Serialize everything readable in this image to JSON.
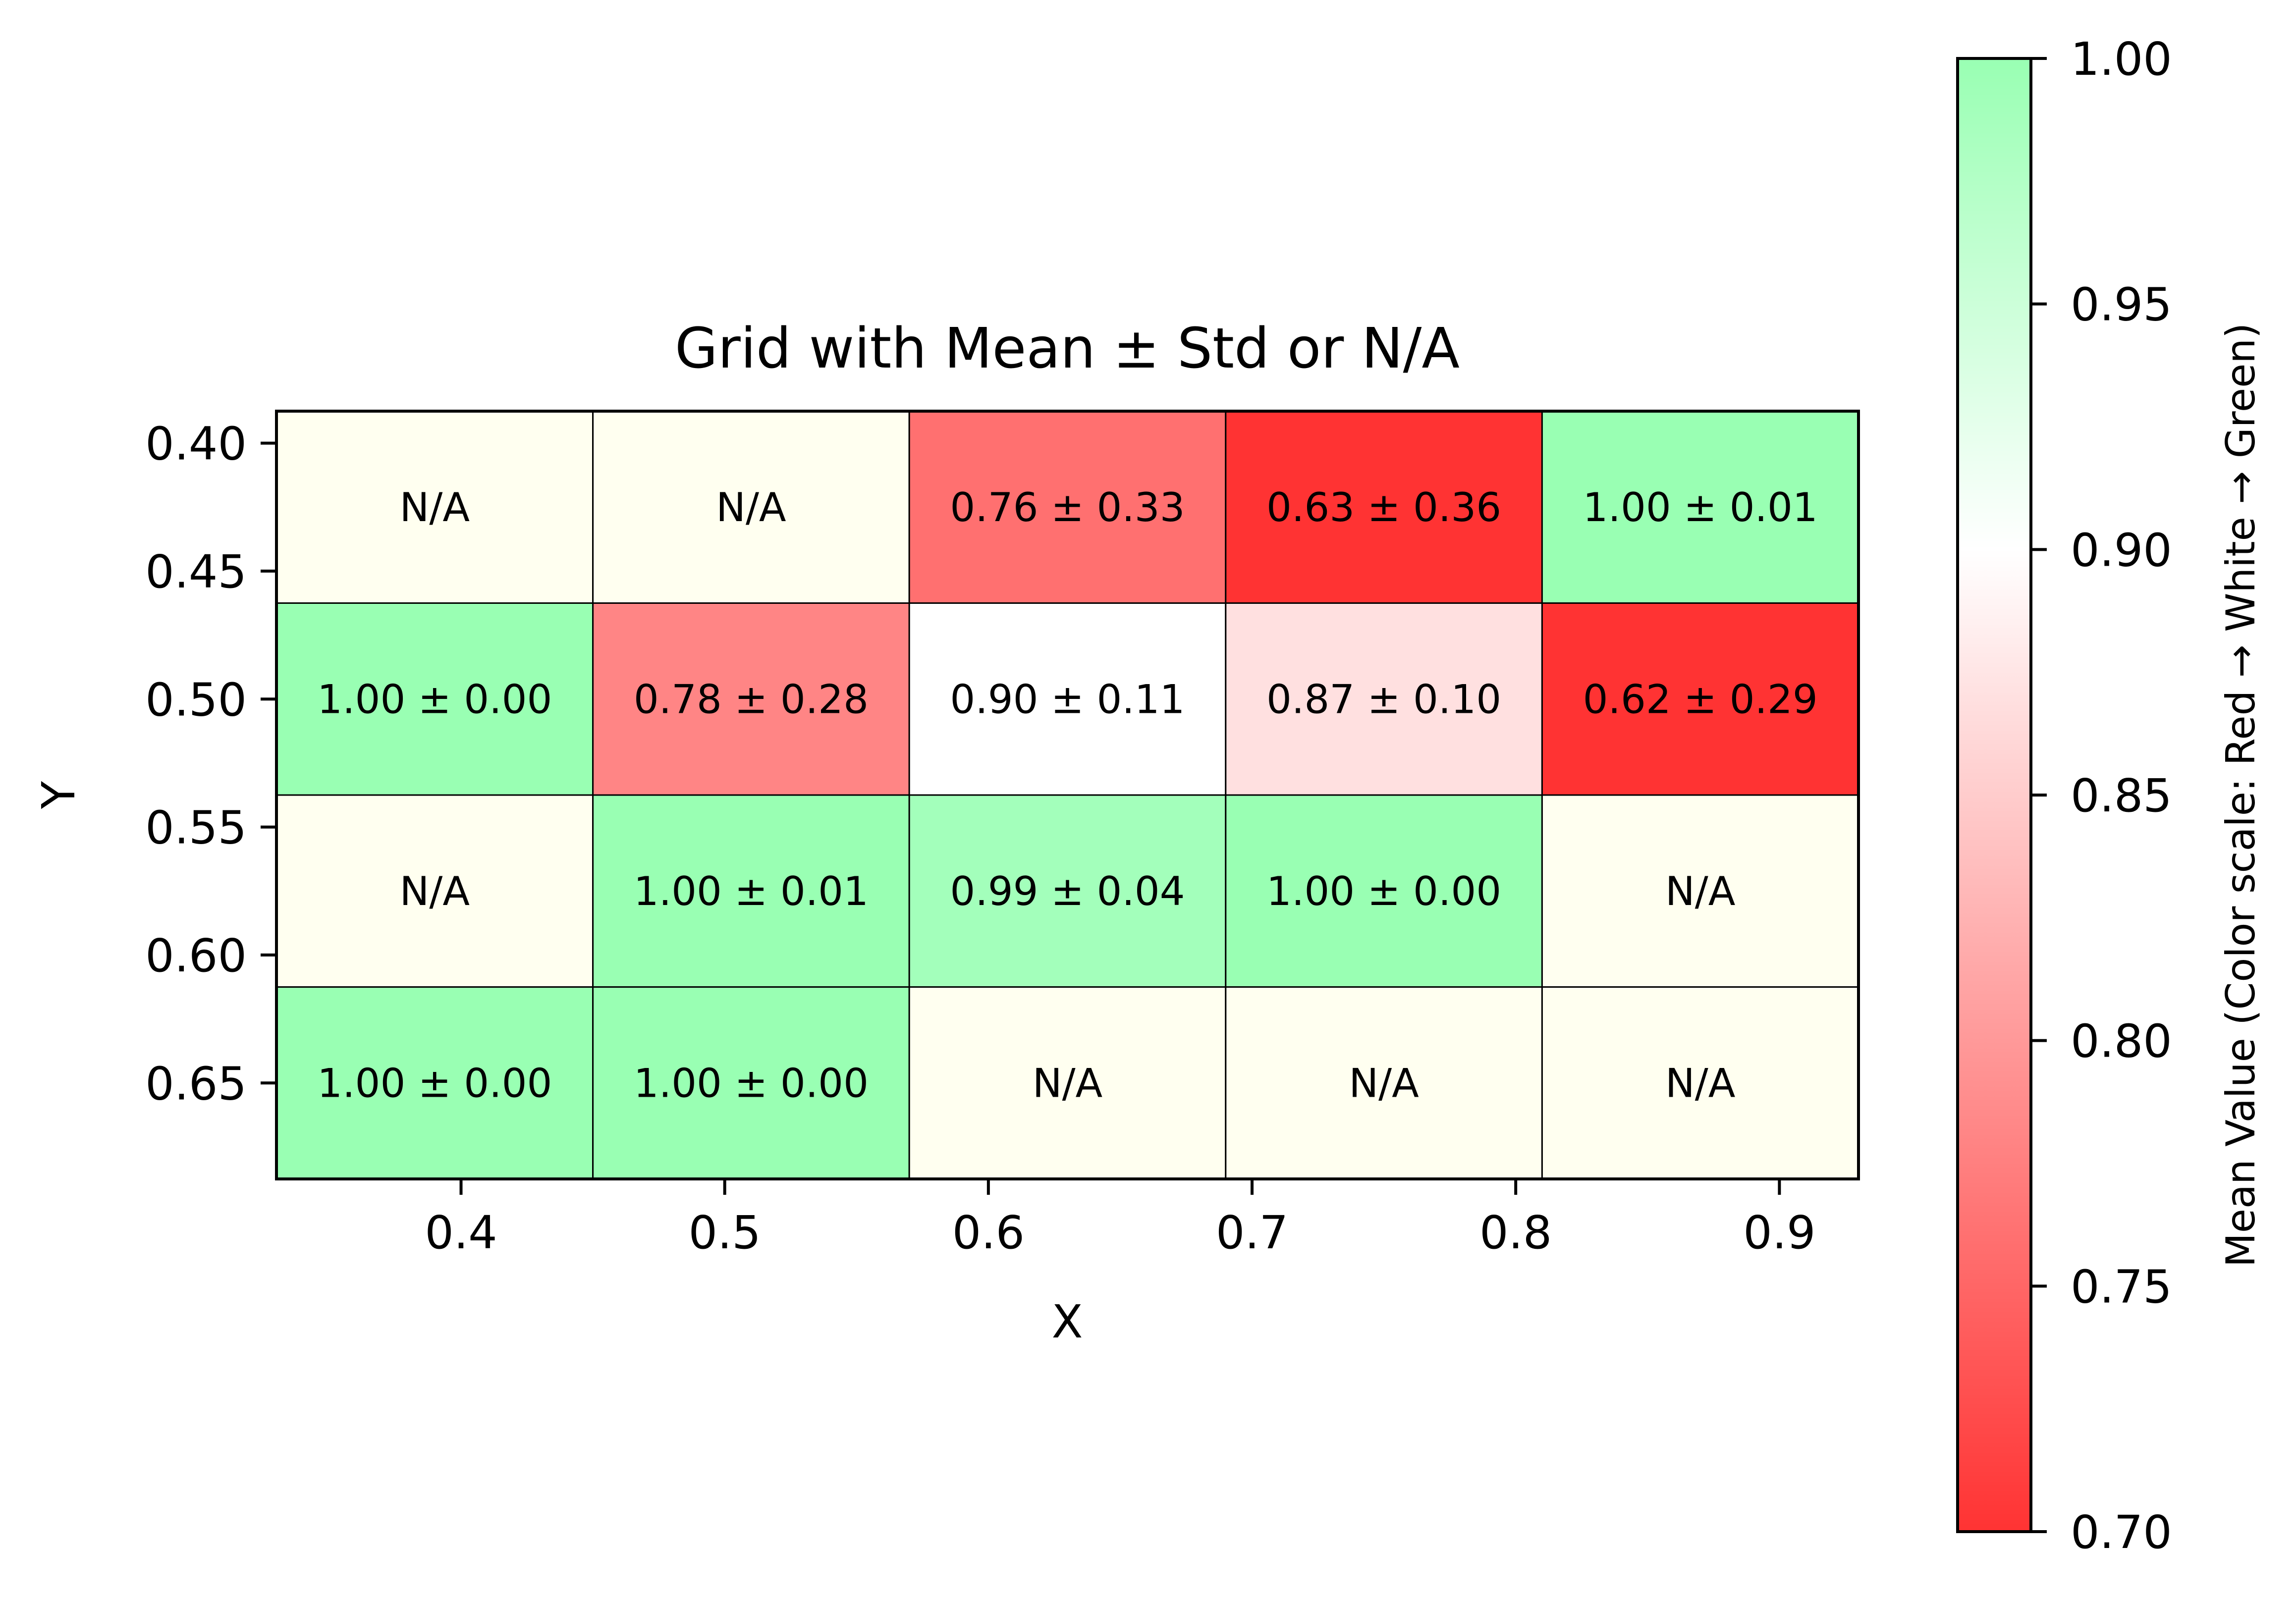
{
  "chart_data": {
    "type": "heatmap",
    "title": "Grid with Mean ± Std or N/A",
    "xlabel": "X",
    "ylabel": "Y",
    "x_ticks": [
      "0.4",
      "0.5",
      "0.6",
      "0.7",
      "0.8",
      "0.9"
    ],
    "x_tick_values": [
      0.4,
      0.5,
      0.6,
      0.7,
      0.8,
      0.9
    ],
    "y_ticks": [
      "0.40",
      "0.45",
      "0.50",
      "0.55",
      "0.60",
      "0.65"
    ],
    "y_tick_values": [
      0.4,
      0.45,
      0.5,
      0.55,
      0.6,
      0.65
    ],
    "xlim": [
      0.33,
      0.93
    ],
    "ylim": [
      0.3875,
      0.6875
    ],
    "y_inverted": true,
    "columns": 5,
    "rows": 4,
    "cells": [
      [
        {
          "mean": null,
          "label": "N/A"
        },
        {
          "mean": null,
          "label": "N/A"
        },
        {
          "mean": 0.76,
          "std": 0.33,
          "label": "0.76 ± 0.33"
        },
        {
          "mean": 0.63,
          "std": 0.36,
          "label": "0.63 ± 0.36"
        },
        {
          "mean": 1.0,
          "std": 0.01,
          "label": "1.00 ± 0.01"
        }
      ],
      [
        {
          "mean": 1.0,
          "std": 0.0,
          "label": "1.00 ± 0.00"
        },
        {
          "mean": 0.78,
          "std": 0.28,
          "label": "0.78 ± 0.28"
        },
        {
          "mean": 0.9,
          "std": 0.11,
          "label": "0.90 ± 0.11"
        },
        {
          "mean": 0.87,
          "std": 0.1,
          "label": "0.87 ± 0.10"
        },
        {
          "mean": 0.62,
          "std": 0.29,
          "label": "0.62 ± 0.29"
        }
      ],
      [
        {
          "mean": null,
          "label": "N/A"
        },
        {
          "mean": 1.0,
          "std": 0.01,
          "label": "1.00 ± 0.01"
        },
        {
          "mean": 0.99,
          "std": 0.04,
          "label": "0.99 ± 0.04"
        },
        {
          "mean": 1.0,
          "std": 0.0,
          "label": "1.00 ± 0.00"
        },
        {
          "mean": null,
          "label": "N/A"
        }
      ],
      [
        {
          "mean": 1.0,
          "std": 0.0,
          "label": "1.00 ± 0.00"
        },
        {
          "mean": 1.0,
          "std": 0.0,
          "label": "1.00 ± 0.00"
        },
        {
          "mean": null,
          "label": "N/A"
        },
        {
          "mean": null,
          "label": "N/A"
        },
        {
          "mean": null,
          "label": "N/A"
        }
      ]
    ],
    "colorbar": {
      "label": "Mean Value (Color scale: Red → White → Green)",
      "range": [
        0.7,
        1.0
      ],
      "ticks": [
        "0.70",
        "0.75",
        "0.80",
        "0.85",
        "0.90",
        "0.95",
        "1.00"
      ],
      "tick_values": [
        0.7,
        0.75,
        0.8,
        0.85,
        0.9,
        0.95,
        1.0
      ],
      "colormap": [
        {
          "value": 0.7,
          "color": "#ff3333"
        },
        {
          "value": 0.9,
          "color": "#ffffff"
        },
        {
          "value": 1.0,
          "color": "#99ffb3"
        }
      ]
    },
    "na_color": "#fffff0",
    "grid_line_color": "#000000"
  }
}
